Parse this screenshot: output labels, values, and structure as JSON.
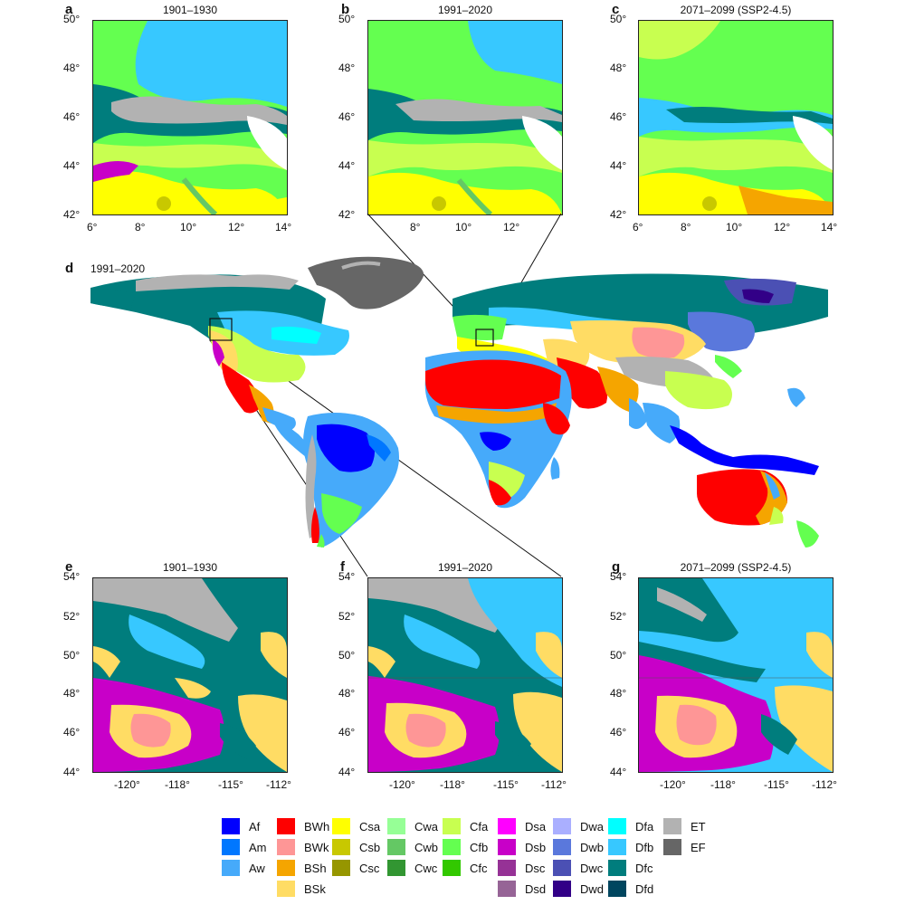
{
  "panels": {
    "a": {
      "letter": "a",
      "title": "1901–1930"
    },
    "b": {
      "letter": "b",
      "title": "1991–2020"
    },
    "c": {
      "letter": "c",
      "title": "2071–2099 (SSP2-4.5)"
    },
    "d": {
      "letter": "d",
      "title": "1991–2020"
    },
    "e": {
      "letter": "e",
      "title": "1901–1930"
    },
    "f": {
      "letter": "f",
      "title": "1991–2020"
    },
    "g": {
      "letter": "g",
      "title": "2071–2099 (SSP2-4.5)"
    }
  },
  "alps_axes": {
    "lat_ticks": [
      "50°",
      "48°",
      "46°",
      "44°",
      "42°"
    ],
    "lon_ticks": [
      "6°",
      "8°",
      "10°",
      "12°",
      "14°"
    ]
  },
  "na_axes": {
    "lat_ticks": [
      "54°",
      "52°",
      "50°",
      "48°",
      "46°",
      "44°"
    ],
    "lon_ticks": [
      "-120°",
      "-118°",
      "-115°",
      "-112°"
    ]
  },
  "legend": [
    {
      "code": "Af",
      "color": "#0000fe"
    },
    {
      "code": "Am",
      "color": "#0077ff"
    },
    {
      "code": "Aw",
      "color": "#46aafa"
    },
    {
      "code": "BWh",
      "color": "#fe0000"
    },
    {
      "code": "BWk",
      "color": "#fe9696"
    },
    {
      "code": "BSh",
      "color": "#f5a500"
    },
    {
      "code": "BSk",
      "color": "#ffdc64"
    },
    {
      "code": "Csa",
      "color": "#ffff00"
    },
    {
      "code": "Csb",
      "color": "#c8c800"
    },
    {
      "code": "Csc",
      "color": "#969600"
    },
    {
      "code": "Cwa",
      "color": "#96ff96"
    },
    {
      "code": "Cwb",
      "color": "#64c864"
    },
    {
      "code": "Cwc",
      "color": "#329632"
    },
    {
      "code": "Cfa",
      "color": "#c8ff50"
    },
    {
      "code": "Cfb",
      "color": "#64ff50"
    },
    {
      "code": "Cfc",
      "color": "#32c800"
    },
    {
      "code": "Dsa",
      "color": "#ff00ff"
    },
    {
      "code": "Dsb",
      "color": "#c800c8"
    },
    {
      "code": "Dsc",
      "color": "#963296"
    },
    {
      "code": "Dsd",
      "color": "#966496"
    },
    {
      "code": "Dwa",
      "color": "#aaafff"
    },
    {
      "code": "Dwb",
      "color": "#5a78dc"
    },
    {
      "code": "Dwc",
      "color": "#4b50b4"
    },
    {
      "code": "Dwd",
      "color": "#320087"
    },
    {
      "code": "Dfa",
      "color": "#00ffff"
    },
    {
      "code": "Dfb",
      "color": "#37c8ff"
    },
    {
      "code": "Dfc",
      "color": "#007d7d"
    },
    {
      "code": "Dfd",
      "color": "#00465f"
    },
    {
      "code": "ET",
      "color": "#b2b2b2"
    },
    {
      "code": "EF",
      "color": "#666666"
    }
  ]
}
